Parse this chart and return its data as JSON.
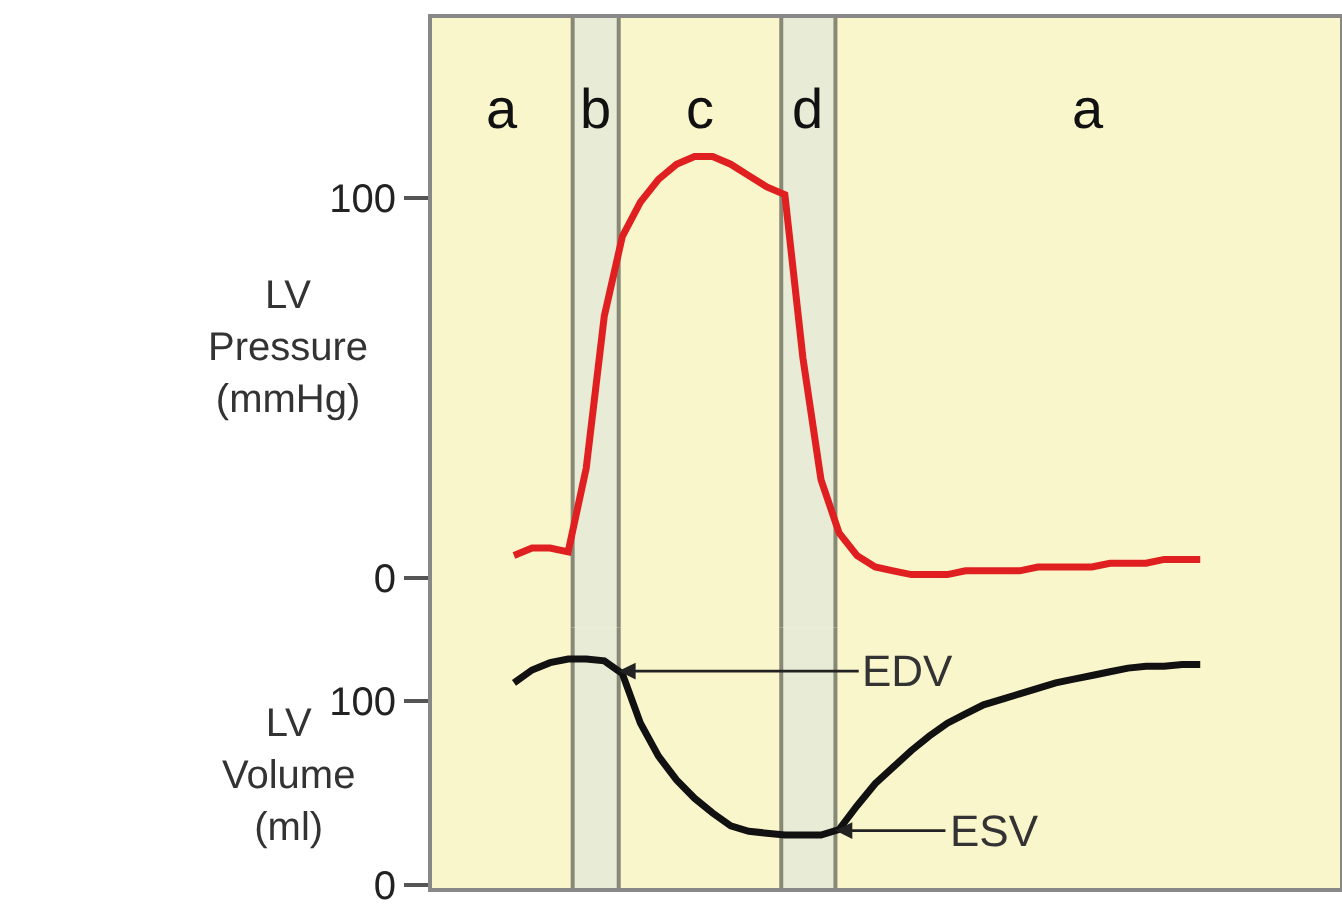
{
  "chart_data": [
    {
      "type": "line",
      "ylabel": "LV\nPressure\n(mmHg)",
      "ylim": [
        -13,
        148
      ],
      "yticks": [
        0,
        100
      ],
      "tick_labels": "y",
      "grid": false,
      "marker": "none",
      "line_style": "solid",
      "categories": [
        null,
        null,
        null,
        null,
        null,
        null,
        null,
        null,
        null,
        null,
        null,
        null,
        null,
        null,
        null,
        null,
        null,
        null,
        null,
        null,
        null,
        null,
        null,
        null,
        null,
        null,
        null,
        null,
        null,
        null,
        null,
        null,
        null,
        null,
        null,
        null,
        null,
        null,
        null
      ],
      "series": [
        {
          "color": "#e02020",
          "values": [
            6,
            8,
            8,
            7,
            29,
            69,
            90,
            99,
            105,
            109,
            111,
            111,
            109,
            106,
            103,
            101,
            58,
            26,
            12,
            6,
            3,
            2,
            1,
            1,
            1,
            2,
            2,
            2,
            2,
            3,
            3,
            3,
            3,
            4,
            4,
            4,
            5,
            5,
            5
          ]
        }
      ],
      "annotations": [
        "a",
        "b",
        "c",
        "d",
        "a"
      ]
    },
    {
      "type": "line",
      "ylabel": "LV\nVolume\n(ml)",
      "ylim": [
        -3,
        140
      ],
      "yticks": [
        0,
        100
      ],
      "tick_labels": "y",
      "grid": false,
      "marker": "none",
      "line_style": "solid",
      "categories": [
        null,
        null,
        null,
        null,
        null,
        null,
        null,
        null,
        null,
        null,
        null,
        null,
        null,
        null,
        null,
        null,
        null,
        null,
        null,
        null,
        null,
        null,
        null,
        null,
        null,
        null,
        null,
        null,
        null,
        null,
        null,
        null,
        null,
        null,
        null,
        null,
        null,
        null,
        null
      ],
      "series": [
        {
          "color": "#111111",
          "values": [
            110,
            117,
            121,
            123,
            123,
            122,
            115,
            88,
            70,
            57,
            47,
            39,
            32,
            29,
            28,
            27,
            27,
            27,
            30,
            43,
            55,
            64,
            73,
            81,
            88,
            93,
            98,
            101,
            104,
            107,
            110,
            112,
            114,
            116,
            118,
            119,
            119,
            120,
            120
          ]
        }
      ],
      "annotations": [
        "EDV",
        "ESV"
      ]
    }
  ]
}
